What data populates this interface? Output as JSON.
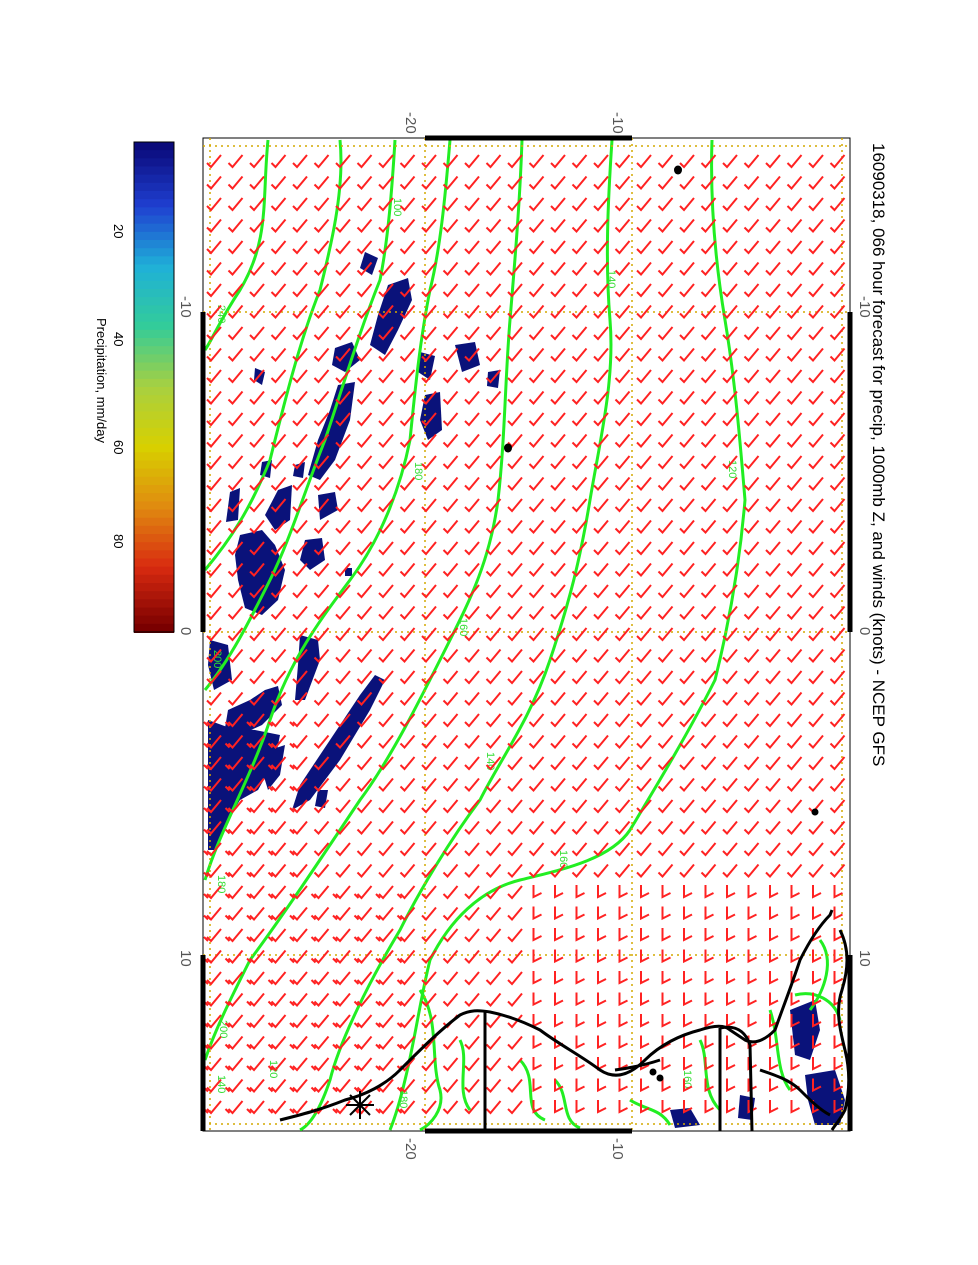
{
  "title": "16090318, 066 hour forecast for precip, 1000mb Z, and winds (knots) - NCEP GFS",
  "colorbar": {
    "label": "Precipitation, mm/day",
    "ticks": [
      "20",
      "40",
      "60",
      "80"
    ],
    "colors": [
      "#0a0a7a",
      "#1f3fd0",
      "#1fb0d8",
      "#33cc99",
      "#a8d040",
      "#d8d000",
      "#e08a10",
      "#d82a10",
      "#7a0000"
    ]
  },
  "axes": {
    "lon_ticks": [
      "-10",
      "0",
      "10"
    ],
    "lat_ticks": [
      "-20",
      "-10"
    ]
  },
  "contours": {
    "color": "#22ee22",
    "labels": [
      "120",
      "140",
      "160",
      "180",
      "200",
      "100",
      "140",
      "160",
      "180",
      "200",
      "240",
      "120",
      "140",
      "160",
      "180",
      "200",
      "220"
    ]
  },
  "wind_barb_color": "#ff2222",
  "precip_color": "#0a127a",
  "coastline_color": "#000000"
}
